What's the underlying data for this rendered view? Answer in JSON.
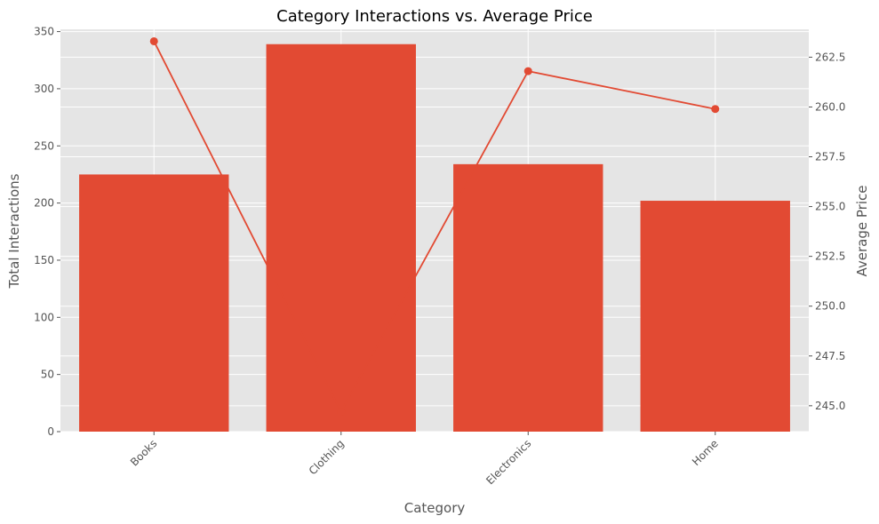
{
  "chart_data": {
    "type": "bar",
    "title": "Category Interactions vs. Average Price",
    "xlabel": "Category",
    "ylabel": "Total Interactions",
    "y2label": "Average Price",
    "categories": [
      "Books",
      "Clothing",
      "Electronics",
      "Home"
    ],
    "series": [
      {
        "type": "bar",
        "axis": "left",
        "values": [
          225,
          339,
          234,
          202
        ]
      },
      {
        "type": "line",
        "axis": "right",
        "values": [
          263.3,
          244.7,
          261.8,
          259.9
        ]
      }
    ],
    "ylim": [
      0,
      352
    ],
    "y2lim": [
      243.7,
      263.9
    ],
    "yticks": [
      0,
      50,
      100,
      150,
      200,
      250,
      300,
      350
    ],
    "ytick_labels": [
      "0",
      "50",
      "100",
      "150",
      "200",
      "250",
      "300",
      "350"
    ],
    "y2ticks": [
      245.0,
      247.5,
      250.0,
      252.5,
      255.0,
      257.5,
      260.0,
      262.5
    ],
    "y2tick_labels": [
      "245.0",
      "247.5",
      "250.0",
      "252.5",
      "255.0",
      "257.5",
      "260.0",
      "262.5"
    ],
    "grid": true,
    "colors": {
      "bar": "#E24A33",
      "line": "#E24A33",
      "plot_bg": "#E5E5E5",
      "grid": "#FFFFFF"
    }
  }
}
